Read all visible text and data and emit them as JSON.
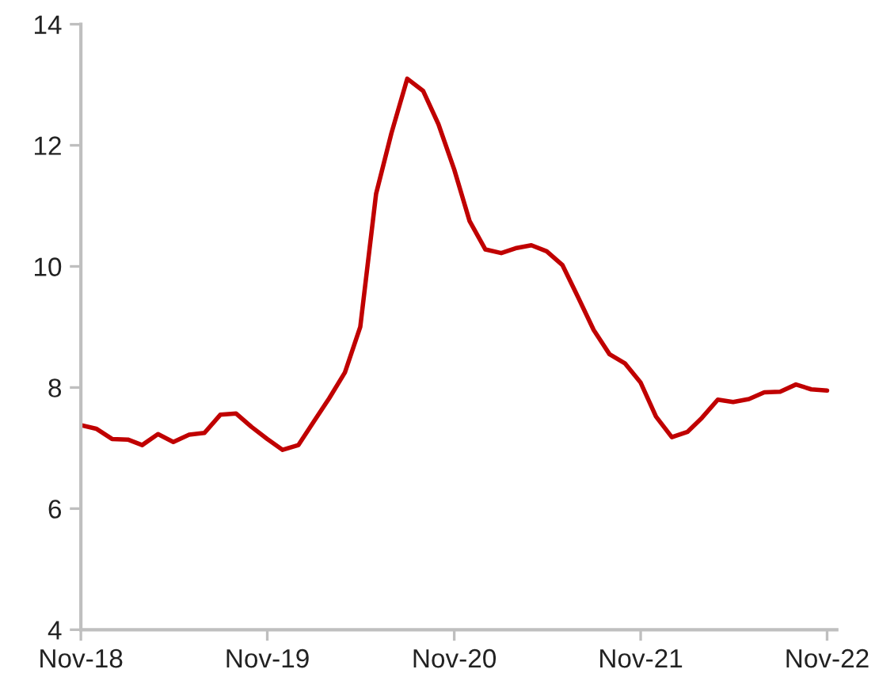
{
  "chart_data": {
    "type": "line",
    "x": [
      "2018-11",
      "2018-12",
      "2019-01",
      "2019-02",
      "2019-03",
      "2019-04",
      "2019-05",
      "2019-06",
      "2019-07",
      "2019-08",
      "2019-09",
      "2019-10",
      "2019-11",
      "2019-12",
      "2020-01",
      "2020-02",
      "2020-03",
      "2020-04",
      "2020-05",
      "2020-06",
      "2020-07",
      "2020-08",
      "2020-09",
      "2020-10",
      "2020-11",
      "2020-12",
      "2021-01",
      "2021-02",
      "2021-03",
      "2021-04",
      "2021-05",
      "2021-06",
      "2021-07",
      "2021-08",
      "2021-09",
      "2021-10",
      "2021-11",
      "2021-12",
      "2022-01",
      "2022-02",
      "2022-03",
      "2022-04",
      "2022-05",
      "2022-06",
      "2022-07",
      "2022-08",
      "2022-09",
      "2022-10",
      "2022-11"
    ],
    "series": [
      {
        "color": "#c00000",
        "values": [
          7.38,
          7.32,
          7.15,
          7.14,
          7.05,
          7.23,
          7.1,
          7.22,
          7.25,
          7.55,
          7.57,
          7.35,
          7.15,
          6.97,
          7.05,
          7.45,
          7.82,
          8.25,
          9.0,
          11.2,
          12.2,
          13.1,
          12.9,
          12.35,
          11.6,
          10.75,
          10.28,
          10.22,
          10.3,
          10.35,
          10.25,
          10.02,
          9.5,
          8.95,
          8.55,
          8.4,
          8.08,
          7.52,
          7.18,
          7.27,
          7.5,
          7.8,
          7.76,
          7.81,
          7.92,
          7.93,
          8.05,
          7.97,
          7.95
        ]
      }
    ],
    "xlim": [
      "2018-11-01",
      "2022-11-20"
    ],
    "xticks": [
      {
        "value": "2018-11",
        "label": "Nov-18"
      },
      {
        "value": "2019-11",
        "label": "Nov-19"
      },
      {
        "value": "2020-11",
        "label": "Nov-20"
      },
      {
        "value": "2021-11",
        "label": "Nov-21"
      },
      {
        "value": "2022-11",
        "label": "Nov-22"
      }
    ],
    "ylim": [
      4,
      14
    ],
    "yticks": [
      4,
      6,
      8,
      10,
      12,
      14
    ],
    "grid": false,
    "legend": false,
    "marker": "none",
    "line_style": "solid"
  }
}
